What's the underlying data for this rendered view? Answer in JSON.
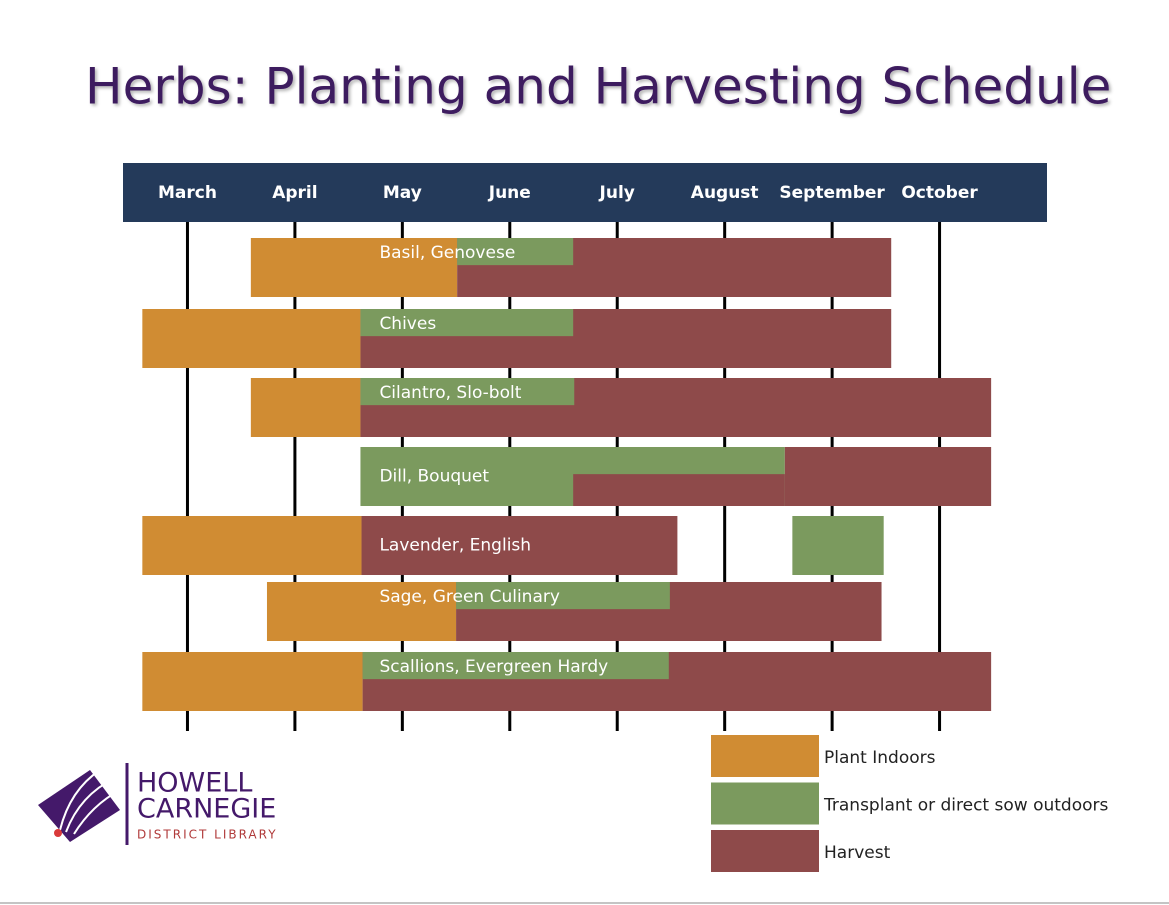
{
  "chart_data": {
    "type": "gantt",
    "title": "Herbs: Planting and Harvesting Schedule",
    "xlim": [
      2.4,
      11
    ],
    "xticks": [
      {
        "value": 3,
        "label": "March"
      },
      {
        "value": 4,
        "label": "April"
      },
      {
        "value": 5,
        "label": "May"
      },
      {
        "value": 6,
        "label": "June"
      },
      {
        "value": 7,
        "label": "July"
      },
      {
        "value": 8,
        "label": "August"
      },
      {
        "value": 9,
        "label": "September"
      },
      {
        "value": 10,
        "label": "October"
      }
    ],
    "series": [
      {
        "name": "Plant Indoors",
        "color": "#d08c33"
      },
      {
        "name": "Transplant or direct sow outdoors",
        "color": "#7b9a5e"
      },
      {
        "name": "Harvest",
        "color": "#8e4a4a"
      }
    ],
    "rows": [
      {
        "name": "Basil, Genovese",
        "segments": [
          {
            "series": 0,
            "start": 3.59,
            "end": 5.51,
            "lane": "full"
          },
          {
            "series": 2,
            "start": 5.51,
            "end": 9.55,
            "lane": "full"
          },
          {
            "series": 1,
            "start": 5.51,
            "end": 6.59,
            "lane": "top"
          }
        ]
      },
      {
        "name": "Chives",
        "segments": [
          {
            "series": 0,
            "start": 2.58,
            "end": 4.61,
            "lane": "full"
          },
          {
            "series": 2,
            "start": 4.61,
            "end": 9.55,
            "lane": "full"
          },
          {
            "series": 1,
            "start": 4.61,
            "end": 6.59,
            "lane": "top"
          }
        ]
      },
      {
        "name": "Cilantro, Slo-bolt",
        "segments": [
          {
            "series": 0,
            "start": 3.59,
            "end": 4.61,
            "lane": "full"
          },
          {
            "series": 2,
            "start": 4.61,
            "end": 10.48,
            "lane": "full"
          },
          {
            "series": 1,
            "start": 4.61,
            "end": 6.6,
            "lane": "top"
          }
        ]
      },
      {
        "name": "Dill, Bouquet",
        "segments": [
          {
            "series": 1,
            "start": 4.61,
            "end": 8.56,
            "lane": "full"
          },
          {
            "series": 2,
            "start": 8.56,
            "end": 10.48,
            "lane": "full"
          },
          {
            "series": 2,
            "start": 6.59,
            "end": 8.56,
            "lane": "bottom"
          }
        ]
      },
      {
        "name": "Lavender, English",
        "segments": [
          {
            "series": 0,
            "start": 2.58,
            "end": 4.62,
            "lane": "full"
          },
          {
            "series": 2,
            "start": 4.62,
            "end": 7.56,
            "lane": "full"
          },
          {
            "series": 1,
            "start": 8.63,
            "end": 9.48,
            "lane": "full"
          }
        ]
      },
      {
        "name": "Sage, Green Culinary",
        "segments": [
          {
            "series": 0,
            "start": 3.74,
            "end": 5.5,
            "lane": "full"
          },
          {
            "series": 2,
            "start": 5.5,
            "end": 9.46,
            "lane": "full"
          },
          {
            "series": 1,
            "start": 5.5,
            "end": 7.49,
            "lane": "top"
          }
        ]
      },
      {
        "name": "Scallions, Evergreen Hardy",
        "segments": [
          {
            "series": 0,
            "start": 2.58,
            "end": 4.63,
            "lane": "full"
          },
          {
            "series": 2,
            "start": 4.63,
            "end": 10.48,
            "lane": "full"
          },
          {
            "series": 1,
            "start": 4.63,
            "end": 7.48,
            "lane": "top"
          }
        ]
      }
    ]
  },
  "logo": {
    "line1": "HOWELL",
    "line2": "CARNEGIE",
    "line3": "DISTRICT LIBRARY"
  }
}
